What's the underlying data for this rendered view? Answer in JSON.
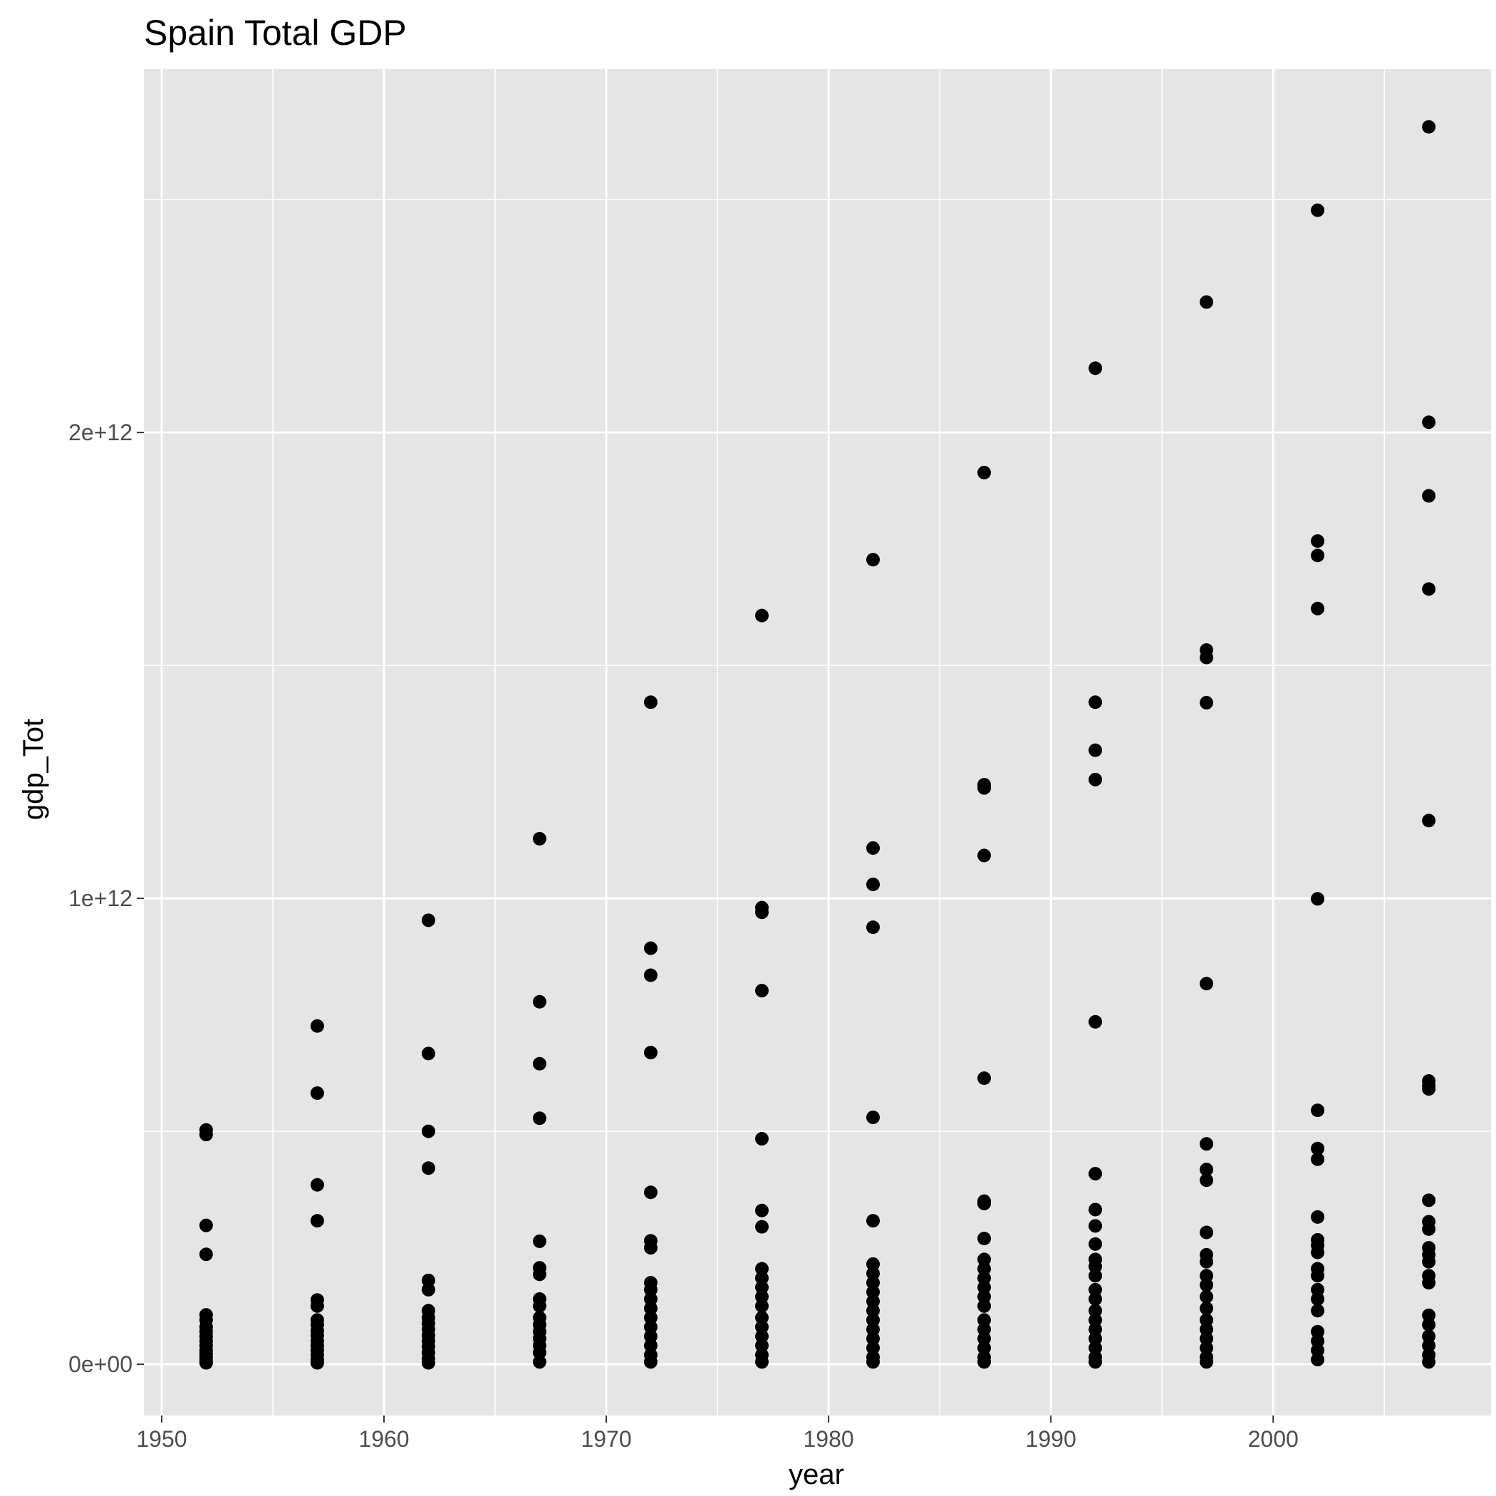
{
  "chart_data": {
    "type": "scatter",
    "title": "Spain Total GDP",
    "xlabel": "year",
    "ylabel": "gdp_Tot",
    "xlim": [
      1949.2,
      2009.8
    ],
    "ylim": [
      -110000000000,
      2780000000000
    ],
    "x_ticks": [
      1950,
      1960,
      1970,
      1980,
      1990,
      2000
    ],
    "x_tick_labels": [
      "1950",
      "1960",
      "1970",
      "1980",
      "1990",
      "2000"
    ],
    "y_ticks": [
      0,
      1000000000000,
      2000000000000
    ],
    "y_tick_labels": [
      "0e+00",
      "1e+12",
      "2e+12"
    ],
    "grid": true,
    "legend": "none",
    "colors": {
      "panel": "#e5e5e5",
      "grid": "#ffffff",
      "point": "#000000",
      "tick": "#4d4d4d"
    },
    "points": [
      {
        "x": 1952,
        "y": 503000000000
      },
      {
        "x": 1952,
        "y": 493000000000
      },
      {
        "x": 1952,
        "y": 298000000000
      },
      {
        "x": 1952,
        "y": 236000000000
      },
      {
        "x": 1952,
        "y": 106000000000
      },
      {
        "x": 1952,
        "y": 95000000000
      },
      {
        "x": 1952,
        "y": 80000000000
      },
      {
        "x": 1952,
        "y": 70000000000
      },
      {
        "x": 1952,
        "y": 60000000000
      },
      {
        "x": 1952,
        "y": 50000000000
      },
      {
        "x": 1952,
        "y": 40000000000
      },
      {
        "x": 1952,
        "y": 30000000000
      },
      {
        "x": 1952,
        "y": 22000000000
      },
      {
        "x": 1952,
        "y": 15000000000
      },
      {
        "x": 1952,
        "y": 8000000000
      },
      {
        "x": 1952,
        "y": 3000000000
      },
      {
        "x": 1957,
        "y": 726000000000
      },
      {
        "x": 1957,
        "y": 582000000000
      },
      {
        "x": 1957,
        "y": 385000000000
      },
      {
        "x": 1957,
        "y": 308000000000
      },
      {
        "x": 1957,
        "y": 138000000000
      },
      {
        "x": 1957,
        "y": 125000000000
      },
      {
        "x": 1957,
        "y": 95000000000
      },
      {
        "x": 1957,
        "y": 85000000000
      },
      {
        "x": 1957,
        "y": 72000000000
      },
      {
        "x": 1957,
        "y": 62000000000
      },
      {
        "x": 1957,
        "y": 50000000000
      },
      {
        "x": 1957,
        "y": 40000000000
      },
      {
        "x": 1957,
        "y": 30000000000
      },
      {
        "x": 1957,
        "y": 20000000000
      },
      {
        "x": 1957,
        "y": 10000000000
      },
      {
        "x": 1957,
        "y": 3000000000
      },
      {
        "x": 1962,
        "y": 953000000000
      },
      {
        "x": 1962,
        "y": 667000000000
      },
      {
        "x": 1962,
        "y": 500000000000
      },
      {
        "x": 1962,
        "y": 421000000000
      },
      {
        "x": 1962,
        "y": 180000000000
      },
      {
        "x": 1962,
        "y": 160000000000
      },
      {
        "x": 1962,
        "y": 115000000000
      },
      {
        "x": 1962,
        "y": 100000000000
      },
      {
        "x": 1962,
        "y": 88000000000
      },
      {
        "x": 1962,
        "y": 75000000000
      },
      {
        "x": 1962,
        "y": 62000000000
      },
      {
        "x": 1962,
        "y": 50000000000
      },
      {
        "x": 1962,
        "y": 38000000000
      },
      {
        "x": 1962,
        "y": 25000000000
      },
      {
        "x": 1962,
        "y": 12000000000
      },
      {
        "x": 1962,
        "y": 3000000000
      },
      {
        "x": 1967,
        "y": 1128000000000
      },
      {
        "x": 1967,
        "y": 778000000000
      },
      {
        "x": 1967,
        "y": 645000000000
      },
      {
        "x": 1967,
        "y": 528000000000
      },
      {
        "x": 1967,
        "y": 264000000000
      },
      {
        "x": 1967,
        "y": 207000000000
      },
      {
        "x": 1967,
        "y": 193000000000
      },
      {
        "x": 1967,
        "y": 140000000000
      },
      {
        "x": 1967,
        "y": 125000000000
      },
      {
        "x": 1967,
        "y": 100000000000
      },
      {
        "x": 1967,
        "y": 85000000000
      },
      {
        "x": 1967,
        "y": 70000000000
      },
      {
        "x": 1967,
        "y": 55000000000
      },
      {
        "x": 1967,
        "y": 40000000000
      },
      {
        "x": 1967,
        "y": 25000000000
      },
      {
        "x": 1967,
        "y": 5000000000
      },
      {
        "x": 1972,
        "y": 1421000000000
      },
      {
        "x": 1972,
        "y": 893000000000
      },
      {
        "x": 1972,
        "y": 835000000000
      },
      {
        "x": 1972,
        "y": 669000000000
      },
      {
        "x": 1972,
        "y": 369000000000
      },
      {
        "x": 1972,
        "y": 265000000000
      },
      {
        "x": 1972,
        "y": 250000000000
      },
      {
        "x": 1972,
        "y": 175000000000
      },
      {
        "x": 1972,
        "y": 160000000000
      },
      {
        "x": 1972,
        "y": 140000000000
      },
      {
        "x": 1972,
        "y": 120000000000
      },
      {
        "x": 1972,
        "y": 100000000000
      },
      {
        "x": 1972,
        "y": 80000000000
      },
      {
        "x": 1972,
        "y": 60000000000
      },
      {
        "x": 1972,
        "y": 40000000000
      },
      {
        "x": 1972,
        "y": 20000000000
      },
      {
        "x": 1972,
        "y": 5000000000
      },
      {
        "x": 1977,
        "y": 1607000000000
      },
      {
        "x": 1977,
        "y": 980000000000
      },
      {
        "x": 1977,
        "y": 970000000000
      },
      {
        "x": 1977,
        "y": 802000000000
      },
      {
        "x": 1977,
        "y": 484000000000
      },
      {
        "x": 1977,
        "y": 330000000000
      },
      {
        "x": 1977,
        "y": 295000000000
      },
      {
        "x": 1977,
        "y": 205000000000
      },
      {
        "x": 1977,
        "y": 185000000000
      },
      {
        "x": 1977,
        "y": 165000000000
      },
      {
        "x": 1977,
        "y": 145000000000
      },
      {
        "x": 1977,
        "y": 125000000000
      },
      {
        "x": 1977,
        "y": 100000000000
      },
      {
        "x": 1977,
        "y": 80000000000
      },
      {
        "x": 1977,
        "y": 60000000000
      },
      {
        "x": 1977,
        "y": 40000000000
      },
      {
        "x": 1977,
        "y": 20000000000
      },
      {
        "x": 1977,
        "y": 5000000000
      },
      {
        "x": 1982,
        "y": 1727000000000
      },
      {
        "x": 1982,
        "y": 1108000000000
      },
      {
        "x": 1982,
        "y": 1030000000000
      },
      {
        "x": 1982,
        "y": 938000000000
      },
      {
        "x": 1982,
        "y": 530000000000
      },
      {
        "x": 1982,
        "y": 308000000000
      },
      {
        "x": 1982,
        "y": 215000000000
      },
      {
        "x": 1982,
        "y": 195000000000
      },
      {
        "x": 1982,
        "y": 175000000000
      },
      {
        "x": 1982,
        "y": 155000000000
      },
      {
        "x": 1982,
        "y": 135000000000
      },
      {
        "x": 1982,
        "y": 115000000000
      },
      {
        "x": 1982,
        "y": 95000000000
      },
      {
        "x": 1982,
        "y": 75000000000
      },
      {
        "x": 1982,
        "y": 55000000000
      },
      {
        "x": 1982,
        "y": 35000000000
      },
      {
        "x": 1982,
        "y": 15000000000
      },
      {
        "x": 1982,
        "y": 5000000000
      },
      {
        "x": 1987,
        "y": 1914000000000
      },
      {
        "x": 1987,
        "y": 1244000000000
      },
      {
        "x": 1987,
        "y": 1237000000000
      },
      {
        "x": 1987,
        "y": 1092000000000
      },
      {
        "x": 1987,
        "y": 614000000000
      },
      {
        "x": 1987,
        "y": 350000000000
      },
      {
        "x": 1987,
        "y": 345000000000
      },
      {
        "x": 1987,
        "y": 270000000000
      },
      {
        "x": 1987,
        "y": 225000000000
      },
      {
        "x": 1987,
        "y": 205000000000
      },
      {
        "x": 1987,
        "y": 185000000000
      },
      {
        "x": 1987,
        "y": 165000000000
      },
      {
        "x": 1987,
        "y": 145000000000
      },
      {
        "x": 1987,
        "y": 125000000000
      },
      {
        "x": 1987,
        "y": 95000000000
      },
      {
        "x": 1987,
        "y": 75000000000
      },
      {
        "x": 1987,
        "y": 55000000000
      },
      {
        "x": 1987,
        "y": 35000000000
      },
      {
        "x": 1987,
        "y": 15000000000
      },
      {
        "x": 1987,
        "y": 5000000000
      },
      {
        "x": 1992,
        "y": 2138000000000
      },
      {
        "x": 1992,
        "y": 1421000000000
      },
      {
        "x": 1992,
        "y": 1318000000000
      },
      {
        "x": 1992,
        "y": 1255000000000
      },
      {
        "x": 1992,
        "y": 735000000000
      },
      {
        "x": 1992,
        "y": 409000000000
      },
      {
        "x": 1992,
        "y": 332000000000
      },
      {
        "x": 1992,
        "y": 297000000000
      },
      {
        "x": 1992,
        "y": 258000000000
      },
      {
        "x": 1992,
        "y": 225000000000
      },
      {
        "x": 1992,
        "y": 210000000000
      },
      {
        "x": 1992,
        "y": 190000000000
      },
      {
        "x": 1992,
        "y": 160000000000
      },
      {
        "x": 1992,
        "y": 140000000000
      },
      {
        "x": 1992,
        "y": 115000000000
      },
      {
        "x": 1992,
        "y": 95000000000
      },
      {
        "x": 1992,
        "y": 75000000000
      },
      {
        "x": 1992,
        "y": 55000000000
      },
      {
        "x": 1992,
        "y": 35000000000
      },
      {
        "x": 1992,
        "y": 15000000000
      },
      {
        "x": 1992,
        "y": 5000000000
      },
      {
        "x": 1997,
        "y": 2280000000000
      },
      {
        "x": 1997,
        "y": 1533000000000
      },
      {
        "x": 1997,
        "y": 1517000000000
      },
      {
        "x": 1997,
        "y": 1420000000000
      },
      {
        "x": 1997,
        "y": 817000000000
      },
      {
        "x": 1997,
        "y": 473000000000
      },
      {
        "x": 1997,
        "y": 418000000000
      },
      {
        "x": 1997,
        "y": 395000000000
      },
      {
        "x": 1997,
        "y": 283000000000
      },
      {
        "x": 1997,
        "y": 235000000000
      },
      {
        "x": 1997,
        "y": 220000000000
      },
      {
        "x": 1997,
        "y": 190000000000
      },
      {
        "x": 1997,
        "y": 170000000000
      },
      {
        "x": 1997,
        "y": 145000000000
      },
      {
        "x": 1997,
        "y": 120000000000
      },
      {
        "x": 1997,
        "y": 95000000000
      },
      {
        "x": 1997,
        "y": 75000000000
      },
      {
        "x": 1997,
        "y": 55000000000
      },
      {
        "x": 1997,
        "y": 35000000000
      },
      {
        "x": 1997,
        "y": 15000000000
      },
      {
        "x": 1997,
        "y": 5000000000
      },
      {
        "x": 2002,
        "y": 2477000000000
      },
      {
        "x": 2002,
        "y": 1767000000000
      },
      {
        "x": 2002,
        "y": 1736000000000
      },
      {
        "x": 2002,
        "y": 1622000000000
      },
      {
        "x": 2002,
        "y": 999000000000
      },
      {
        "x": 2002,
        "y": 545000000000
      },
      {
        "x": 2002,
        "y": 463000000000
      },
      {
        "x": 2002,
        "y": 440000000000
      },
      {
        "x": 2002,
        "y": 316000000000
      },
      {
        "x": 2002,
        "y": 267000000000
      },
      {
        "x": 2002,
        "y": 255000000000
      },
      {
        "x": 2002,
        "y": 240000000000
      },
      {
        "x": 2002,
        "y": 205000000000
      },
      {
        "x": 2002,
        "y": 190000000000
      },
      {
        "x": 2002,
        "y": 160000000000
      },
      {
        "x": 2002,
        "y": 140000000000
      },
      {
        "x": 2002,
        "y": 115000000000
      },
      {
        "x": 2002,
        "y": 70000000000
      },
      {
        "x": 2002,
        "y": 50000000000
      },
      {
        "x": 2002,
        "y": 30000000000
      },
      {
        "x": 2002,
        "y": 10000000000
      },
      {
        "x": 2007,
        "y": 2656000000000
      },
      {
        "x": 2007,
        "y": 2022000000000
      },
      {
        "x": 2007,
        "y": 1864000000000
      },
      {
        "x": 2007,
        "y": 1664000000000
      },
      {
        "x": 2007,
        "y": 1167000000000
      },
      {
        "x": 2007,
        "y": 608000000000
      },
      {
        "x": 2007,
        "y": 598000000000
      },
      {
        "x": 2007,
        "y": 591000000000
      },
      {
        "x": 2007,
        "y": 352000000000
      },
      {
        "x": 2007,
        "y": 306000000000
      },
      {
        "x": 2007,
        "y": 290000000000
      },
      {
        "x": 2007,
        "y": 250000000000
      },
      {
        "x": 2007,
        "y": 235000000000
      },
      {
        "x": 2007,
        "y": 220000000000
      },
      {
        "x": 2007,
        "y": 190000000000
      },
      {
        "x": 2007,
        "y": 175000000000
      },
      {
        "x": 2007,
        "y": 105000000000
      },
      {
        "x": 2007,
        "y": 85000000000
      },
      {
        "x": 2007,
        "y": 60000000000
      },
      {
        "x": 2007,
        "y": 40000000000
      },
      {
        "x": 2007,
        "y": 20000000000
      },
      {
        "x": 2007,
        "y": 5000000000
      }
    ]
  }
}
